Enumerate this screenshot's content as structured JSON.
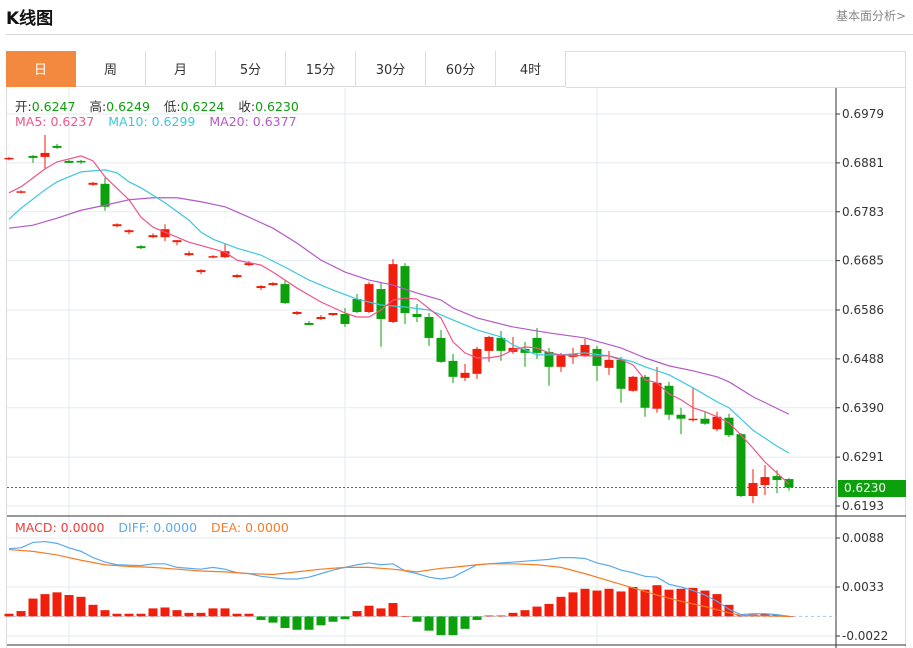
{
  "header": {
    "title": "K线图",
    "link": "基本面分析>"
  },
  "tabs": [
    {
      "label": "日",
      "active": true
    },
    {
      "label": "周"
    },
    {
      "label": "月"
    },
    {
      "label": "5分"
    },
    {
      "label": "15分"
    },
    {
      "label": "30分"
    },
    {
      "label": "60分"
    },
    {
      "label": "4时"
    }
  ],
  "ohlc": {
    "open_label": "开:",
    "open": "0.6247",
    "high_label": "高:",
    "high": "0.6249",
    "low_label": "低:",
    "low": "0.6224",
    "close_label": "收:",
    "close": "0.6230"
  },
  "ma_legend": {
    "ma5": "MA5: 0.6237",
    "ma10": "MA10: 0.6299",
    "ma20": "MA20: 0.6377"
  },
  "macd_legend": {
    "macd": "MACD: 0.0000",
    "diff": "DIFF: 0.0000",
    "dea": "DEA: 0.0000"
  },
  "current_price": "0.6230",
  "colors": {
    "up": "#f01e0a",
    "down": "#0ca00c",
    "ma5": "#f0558a",
    "ma10": "#3cc8e0",
    "ma20": "#b45ac8",
    "diff": "#5aaaf0",
    "dea": "#f57d28",
    "accent": "#f2893e"
  },
  "chart_data": [
    {
      "type": "candlestick",
      "title": "K线图 日",
      "y_ticks": [
        "0.6979",
        "0.6881",
        "0.6783",
        "0.6685",
        "0.6586",
        "0.6488",
        "0.6390",
        "0.6291",
        "0.6193"
      ],
      "ylim": [
        0.6193,
        0.6979
      ],
      "ohlc": [
        [
          0.6888,
          0.6893,
          0.6886,
          0.6891
        ],
        [
          0.6821,
          0.6826,
          0.682,
          0.6824
        ],
        [
          0.6895,
          0.6897,
          0.6881,
          0.6891
        ],
        [
          0.6893,
          0.6937,
          0.6869,
          0.6901
        ],
        [
          0.6915,
          0.6919,
          0.6909,
          0.6911
        ],
        [
          0.6885,
          0.6887,
          0.6881,
          0.6881
        ],
        [
          0.6885,
          0.6887,
          0.6879,
          0.6883
        ],
        [
          0.6837,
          0.6843,
          0.6835,
          0.6841
        ],
        [
          0.6839,
          0.6851,
          0.6785,
          0.6793
        ],
        [
          0.6754,
          0.676,
          0.6752,
          0.6758
        ],
        [
          0.6742,
          0.6748,
          0.6738,
          0.6746
        ],
        [
          0.6714,
          0.6716,
          0.6708,
          0.671
        ],
        [
          0.6732,
          0.674,
          0.673,
          0.6736
        ],
        [
          0.6732,
          0.6758,
          0.6724,
          0.6748
        ],
        [
          0.6722,
          0.6726,
          0.6716,
          0.6726
        ],
        [
          0.6696,
          0.6704,
          0.6694,
          0.67
        ],
        [
          0.6662,
          0.6668,
          0.6658,
          0.6666
        ],
        [
          0.6692,
          0.6696,
          0.669,
          0.6694
        ],
        [
          0.6692,
          0.6718,
          0.669,
          0.6704
        ],
        [
          0.6652,
          0.6658,
          0.665,
          0.6656
        ],
        [
          0.6676,
          0.6684,
          0.6674,
          0.668
        ],
        [
          0.663,
          0.6636,
          0.6626,
          0.6634
        ],
        [
          0.6636,
          0.6642,
          0.6634,
          0.664
        ],
        [
          0.6638,
          0.6646,
          0.6598,
          0.66
        ],
        [
          0.6578,
          0.6584,
          0.6576,
          0.6582
        ],
        [
          0.656,
          0.6564,
          0.6556,
          0.6556
        ],
        [
          0.6568,
          0.6576,
          0.6566,
          0.6572
        ],
        [
          0.6576,
          0.658,
          0.6574,
          0.658
        ],
        [
          0.6578,
          0.659,
          0.6552,
          0.6558
        ],
        [
          0.6608,
          0.6618,
          0.658,
          0.6582
        ],
        [
          0.6582,
          0.6642,
          0.658,
          0.6638
        ],
        [
          0.6628,
          0.6642,
          0.6512,
          0.6568
        ],
        [
          0.6562,
          0.6688,
          0.656,
          0.6678
        ],
        [
          0.6674,
          0.668,
          0.6558,
          0.658
        ],
        [
          0.6578,
          0.6598,
          0.6562,
          0.6572
        ],
        [
          0.6572,
          0.658,
          0.6514,
          0.653
        ],
        [
          0.653,
          0.6546,
          0.648,
          0.6482
        ],
        [
          0.6484,
          0.6498,
          0.644,
          0.6452
        ],
        [
          0.645,
          0.6478,
          0.6444,
          0.646
        ],
        [
          0.6458,
          0.6512,
          0.6448,
          0.6508
        ],
        [
          0.6504,
          0.6534,
          0.6482,
          0.6532
        ],
        [
          0.653,
          0.6544,
          0.6484,
          0.6504
        ],
        [
          0.6502,
          0.6532,
          0.6498,
          0.651
        ],
        [
          0.6508,
          0.6522,
          0.6472,
          0.65
        ],
        [
          0.653,
          0.655,
          0.6488,
          0.65
        ],
        [
          0.6502,
          0.651,
          0.6434,
          0.6472
        ],
        [
          0.6472,
          0.65,
          0.6462,
          0.6496
        ],
        [
          0.6492,
          0.651,
          0.6478,
          0.6498
        ],
        [
          0.6494,
          0.6528,
          0.6492,
          0.6516
        ],
        [
          0.6508,
          0.6514,
          0.6444,
          0.6474
        ],
        [
          0.647,
          0.6504,
          0.6456,
          0.6486
        ],
        [
          0.6486,
          0.6492,
          0.64,
          0.6428
        ],
        [
          0.6424,
          0.6454,
          0.6422,
          0.6452
        ],
        [
          0.6452,
          0.6456,
          0.6372,
          0.639
        ],
        [
          0.6388,
          0.6472,
          0.638,
          0.644
        ],
        [
          0.6434,
          0.6442,
          0.6366,
          0.6376
        ],
        [
          0.6376,
          0.639,
          0.6337,
          0.6368
        ],
        [
          0.6366,
          0.643,
          0.6362,
          0.6368
        ],
        [
          0.6368,
          0.6382,
          0.6356,
          0.6358
        ],
        [
          0.6347,
          0.6382,
          0.6343,
          0.6372
        ],
        [
          0.637,
          0.6378,
          0.6331,
          0.6335
        ],
        [
          0.6337,
          0.6339,
          0.6211,
          0.6213
        ],
        [
          0.6213,
          0.6267,
          0.6199,
          0.6239
        ],
        [
          0.6235,
          0.6275,
          0.6215,
          0.6251
        ],
        [
          0.6253,
          0.6265,
          0.6219,
          0.6245
        ],
        [
          0.6247,
          0.6249,
          0.6224,
          0.623
        ]
      ],
      "ma5": [
        [
          0,
          0.6821
        ],
        [
          1,
          0.6833
        ],
        [
          3,
          0.6869
        ],
        [
          4,
          0.6883
        ],
        [
          6,
          0.6895
        ],
        [
          7,
          0.6885
        ],
        [
          8,
          0.6853
        ],
        [
          10,
          0.6807
        ],
        [
          11,
          0.6772
        ],
        [
          12,
          0.6752
        ],
        [
          15,
          0.6722
        ],
        [
          18,
          0.6702
        ],
        [
          19,
          0.6686
        ],
        [
          21,
          0.6676
        ],
        [
          22,
          0.6662
        ],
        [
          24,
          0.663
        ],
        [
          26,
          0.6602
        ],
        [
          28,
          0.658
        ],
        [
          29,
          0.6572
        ],
        [
          30,
          0.6572
        ],
        [
          31,
          0.6586
        ],
        [
          32,
          0.6606
        ],
        [
          33,
          0.661
        ],
        [
          34,
          0.6608
        ],
        [
          36,
          0.657
        ],
        [
          37,
          0.6522
        ],
        [
          38,
          0.65
        ],
        [
          39,
          0.649
        ],
        [
          40,
          0.649
        ],
        [
          41,
          0.6494
        ],
        [
          42,
          0.6506
        ],
        [
          43,
          0.6512
        ],
        [
          44,
          0.651
        ],
        [
          45,
          0.65
        ],
        [
          46,
          0.6496
        ],
        [
          48,
          0.6494
        ],
        [
          50,
          0.6494
        ],
        [
          51,
          0.6486
        ],
        [
          52,
          0.6476
        ],
        [
          53,
          0.6446
        ],
        [
          54,
          0.644
        ],
        [
          55,
          0.6418
        ],
        [
          56,
          0.6406
        ],
        [
          57,
          0.639
        ],
        [
          58,
          0.6382
        ],
        [
          59,
          0.6372
        ],
        [
          60,
          0.636
        ],
        [
          61,
          0.6335
        ],
        [
          62,
          0.6309
        ],
        [
          63,
          0.6281
        ],
        [
          64,
          0.6259
        ],
        [
          65,
          0.6237
        ]
      ],
      "ma10": [
        [
          0,
          0.6768
        ],
        [
          1,
          0.679
        ],
        [
          3,
          0.6827
        ],
        [
          4,
          0.6843
        ],
        [
          6,
          0.6863
        ],
        [
          8,
          0.6867
        ],
        [
          9,
          0.6861
        ],
        [
          10,
          0.6843
        ],
        [
          11,
          0.6831
        ],
        [
          13,
          0.6801
        ],
        [
          15,
          0.6766
        ],
        [
          16,
          0.6742
        ],
        [
          17,
          0.6728
        ],
        [
          19,
          0.671
        ],
        [
          21,
          0.6696
        ],
        [
          23,
          0.6672
        ],
        [
          25,
          0.6646
        ],
        [
          27,
          0.6626
        ],
        [
          29,
          0.6608
        ],
        [
          31,
          0.6596
        ],
        [
          33,
          0.6592
        ],
        [
          35,
          0.6586
        ],
        [
          37,
          0.6566
        ],
        [
          39,
          0.6546
        ],
        [
          41,
          0.6532
        ],
        [
          42,
          0.6516
        ],
        [
          44,
          0.6496
        ],
        [
          46,
          0.6496
        ],
        [
          48,
          0.65
        ],
        [
          50,
          0.6494
        ],
        [
          52,
          0.6482
        ],
        [
          53,
          0.6472
        ],
        [
          55,
          0.6456
        ],
        [
          57,
          0.643
        ],
        [
          59,
          0.6402
        ],
        [
          60,
          0.639
        ],
        [
          62,
          0.6345
        ],
        [
          64,
          0.6313
        ],
        [
          65,
          0.6299
        ]
      ],
      "ma20": [
        [
          0,
          0.675
        ],
        [
          2,
          0.6756
        ],
        [
          4,
          0.677
        ],
        [
          6,
          0.6786
        ],
        [
          8,
          0.6796
        ],
        [
          10,
          0.6807
        ],
        [
          12,
          0.6811
        ],
        [
          14,
          0.6811
        ],
        [
          16,
          0.6803
        ],
        [
          18,
          0.6793
        ],
        [
          20,
          0.6772
        ],
        [
          22,
          0.675
        ],
        [
          24,
          0.672
        ],
        [
          26,
          0.6686
        ],
        [
          28,
          0.6662
        ],
        [
          30,
          0.6646
        ],
        [
          32,
          0.6636
        ],
        [
          34,
          0.662
        ],
        [
          36,
          0.6606
        ],
        [
          37,
          0.659
        ],
        [
          39,
          0.657
        ],
        [
          42,
          0.6552
        ],
        [
          45,
          0.654
        ],
        [
          48,
          0.653
        ],
        [
          51,
          0.651
        ],
        [
          53,
          0.649
        ],
        [
          55,
          0.6474
        ],
        [
          57,
          0.6464
        ],
        [
          59,
          0.6452
        ],
        [
          60,
          0.6442
        ],
        [
          62,
          0.6412
        ],
        [
          65,
          0.6377
        ]
      ]
    },
    {
      "type": "bar",
      "title": "MACD",
      "y_ticks": [
        "0.0088",
        "0.0033",
        "-0.0022"
      ],
      "ylim": [
        -0.0022,
        0.0088
      ],
      "macd": [
        0.0003,
        0.0006,
        0.002,
        0.0025,
        0.0027,
        0.0024,
        0.0022,
        0.0013,
        0.0007,
        0.0003,
        0.0003,
        0.0003,
        0.0009,
        0.001,
        0.0007,
        0.0004,
        0.0004,
        0.0009,
        0.0009,
        0.0003,
        0.0003,
        -0.0004,
        -0.0007,
        -0.0013,
        -0.0015,
        -0.0015,
        -0.001,
        -0.0006,
        -0.0003,
        0.0006,
        0.0012,
        0.0009,
        0.0015,
        0,
        -0.0006,
        -0.0016,
        -0.0021,
        -0.0021,
        -0.0014,
        -0.0004,
        0.0001,
        0.0001,
        0.0004,
        0.0007,
        0.0011,
        0.0014,
        0.0022,
        0.0027,
        0.0031,
        0.0029,
        0.0031,
        0.0028,
        0.0033,
        0.003,
        0.0035,
        0.003,
        0.0031,
        0.0032,
        0.0029,
        0.0025,
        0.0013,
        0.0001,
        0.0002,
        0.0003,
        0.0002,
        0
      ],
      "diff": [
        [
          0,
          0.0076
        ],
        [
          1,
          0.0077
        ],
        [
          2,
          0.0083
        ],
        [
          3,
          0.0084
        ],
        [
          4,
          0.0082
        ],
        [
          5,
          0.0077
        ],
        [
          6,
          0.0073
        ],
        [
          7,
          0.0066
        ],
        [
          8,
          0.0061
        ],
        [
          9,
          0.0058
        ],
        [
          11,
          0.0057
        ],
        [
          12,
          0.0059
        ],
        [
          13,
          0.0059
        ],
        [
          14,
          0.0055
        ],
        [
          16,
          0.0053
        ],
        [
          17,
          0.0055
        ],
        [
          18,
          0.0053
        ],
        [
          19,
          0.0049
        ],
        [
          20,
          0.0048
        ],
        [
          21,
          0.0045
        ],
        [
          23,
          0.0042
        ],
        [
          24,
          0.0042
        ],
        [
          25,
          0.0044
        ],
        [
          26,
          0.0048
        ],
        [
          27,
          0.0052
        ],
        [
          28,
          0.0055
        ],
        [
          29,
          0.0058
        ],
        [
          30,
          0.006
        ],
        [
          31,
          0.0058
        ],
        [
          32,
          0.0059
        ],
        [
          33,
          0.0051
        ],
        [
          34,
          0.0048
        ],
        [
          35,
          0.0044
        ],
        [
          36,
          0.0042
        ],
        [
          37,
          0.0044
        ],
        [
          39,
          0.0058
        ],
        [
          41,
          0.006
        ],
        [
          43,
          0.0062
        ],
        [
          45,
          0.0064
        ],
        [
          46,
          0.0066
        ],
        [
          47,
          0.0066
        ],
        [
          48,
          0.0065
        ],
        [
          49,
          0.006
        ],
        [
          50,
          0.0057
        ],
        [
          51,
          0.0052
        ],
        [
          52,
          0.0049
        ],
        [
          53,
          0.0045
        ],
        [
          54,
          0.0044
        ],
        [
          55,
          0.0036
        ],
        [
          56,
          0.0033
        ],
        [
          57,
          0.0029
        ],
        [
          58,
          0.0024
        ],
        [
          59,
          0.0017
        ],
        [
          60,
          0.0008
        ],
        [
          61,
          0.0002
        ],
        [
          62,
          0.0003
        ],
        [
          63,
          0.0003
        ],
        [
          64,
          0.0002
        ],
        [
          65,
          0
        ]
      ],
      "dea": [
        [
          0,
          0.0075
        ],
        [
          2,
          0.0073
        ],
        [
          4,
          0.0069
        ],
        [
          6,
          0.0063
        ],
        [
          8,
          0.0058
        ],
        [
          10,
          0.0056
        ],
        [
          12,
          0.0055
        ],
        [
          14,
          0.0053
        ],
        [
          16,
          0.0051
        ],
        [
          18,
          0.005
        ],
        [
          20,
          0.0048
        ],
        [
          22,
          0.0047
        ],
        [
          24,
          0.005
        ],
        [
          26,
          0.0053
        ],
        [
          28,
          0.0055
        ],
        [
          30,
          0.0055
        ],
        [
          32,
          0.0053
        ],
        [
          34,
          0.005
        ],
        [
          36,
          0.0054
        ],
        [
          37,
          0.0055
        ],
        [
          39,
          0.0058
        ],
        [
          40,
          0.0059
        ],
        [
          42,
          0.0059
        ],
        [
          44,
          0.0058
        ],
        [
          46,
          0.0055
        ],
        [
          48,
          0.0048
        ],
        [
          50,
          0.004
        ],
        [
          52,
          0.0032
        ],
        [
          54,
          0.0024
        ],
        [
          56,
          0.0017
        ],
        [
          58,
          0.0011
        ],
        [
          60,
          0.0004
        ],
        [
          61,
          0.0001
        ],
        [
          65,
          0
        ]
      ]
    }
  ]
}
